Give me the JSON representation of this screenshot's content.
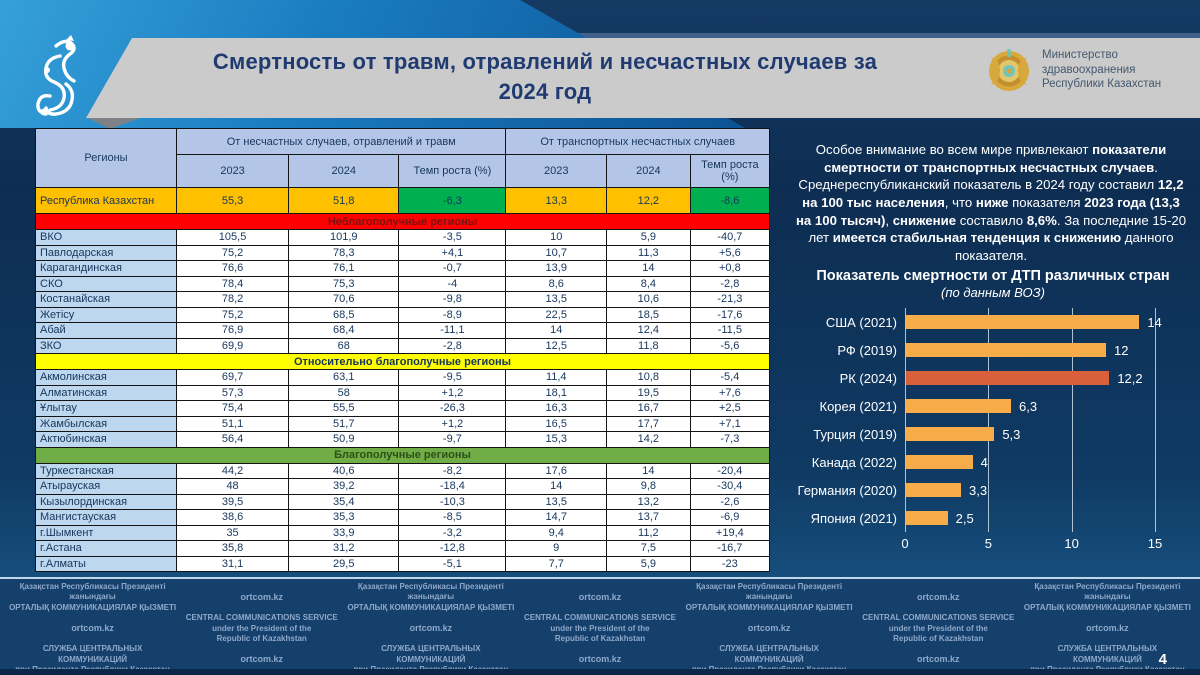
{
  "header": {
    "title_lines": [
      "Смертность от травм, отравлений и несчастных случаев за",
      "2024 год"
    ],
    "ministry": {
      "line1": "Министерство",
      "line2": "здравоохранения",
      "line3": "Республики Казахстан"
    }
  },
  "table": {
    "headers": {
      "regions": "Регионы",
      "group1": "От несчастных случаев, отравлений и травм",
      "group2": "От транспортных несчастных случаев",
      "y2023": "2023",
      "y2024": "2024",
      "rate": "Темп роста (%)"
    },
    "summary": {
      "label": "Республика Казахстан",
      "values": [
        "55,3",
        "51,8",
        "-6,3",
        "13,3",
        "12,2",
        "-8,6"
      ]
    },
    "sections": [
      {
        "banner": "Неблагополучные регионы",
        "type": "red",
        "rows": [
          {
            "region": "ВКО",
            "values": [
              "105,5",
              "101,9",
              "-3,5",
              "10",
              "5,9",
              "-40,7"
            ]
          },
          {
            "region": "Павлодарская",
            "values": [
              "75,2",
              "78,3",
              "+4,1",
              "10,7",
              "11,3",
              "+5,6"
            ]
          },
          {
            "region": "Карагандинская",
            "values": [
              "76,6",
              "76,1",
              "-0,7",
              "13,9",
              "14",
              "+0,8"
            ]
          },
          {
            "region": "СКО",
            "values": [
              "78,4",
              "75,3",
              "-4",
              "8,6",
              "8,4",
              "-2,8"
            ]
          },
          {
            "region": "Костанайская",
            "values": [
              "78,2",
              "70,6",
              "-9,8",
              "13,5",
              "10,6",
              "-21,3"
            ]
          },
          {
            "region": "Жетісу",
            "values": [
              "75,2",
              "68,5",
              "-8,9",
              "22,5",
              "18,5",
              "-17,6"
            ]
          },
          {
            "region": "Абай",
            "values": [
              "76,9",
              "68,4",
              "-11,1",
              "14",
              "12,4",
              "-11,5"
            ]
          },
          {
            "region": "ЗКО",
            "values": [
              "69,9",
              "68",
              "-2,8",
              "12,5",
              "11,8",
              "-5,6"
            ]
          }
        ]
      },
      {
        "banner": "Относительно благополучные регионы",
        "type": "yellow",
        "rows": [
          {
            "region": "Акмолинская",
            "values": [
              "69,7",
              "63,1",
              "-9,5",
              "11,4",
              "10,8",
              "-5,4"
            ]
          },
          {
            "region": "Алматинская",
            "values": [
              "57,3",
              "58",
              "+1,2",
              "18,1",
              "19,5",
              "+7,6"
            ]
          },
          {
            "region": "Ұлытау",
            "values": [
              "75,4",
              "55,5",
              "-26,3",
              "16,3",
              "16,7",
              "+2,5"
            ]
          },
          {
            "region": "Жамбылская",
            "values": [
              "51,1",
              "51,7",
              "+1,2",
              "16,5",
              "17,7",
              "+7,1"
            ]
          },
          {
            "region": "Актюбинская",
            "values": [
              "56,4",
              "50,9",
              "-9,7",
              "15,3",
              "14,2",
              "-7,3"
            ]
          }
        ]
      },
      {
        "banner": "Благополучные регионы",
        "type": "green",
        "rows": [
          {
            "region": "Туркестанская",
            "values": [
              "44,2",
              "40,6",
              "-8,2",
              "17,6",
              "14",
              "-20,4"
            ]
          },
          {
            "region": "Атырауская",
            "values": [
              "48",
              "39,2",
              "-18,4",
              "14",
              "9,8",
              "-30,4"
            ]
          },
          {
            "region": "Кызылординская",
            "values": [
              "39,5",
              "35,4",
              "-10,3",
              "13,5",
              "13,2",
              "-2,6"
            ]
          },
          {
            "region": "Мангистауская",
            "values": [
              "38,6",
              "35,3",
              "-8,5",
              "14,7",
              "13,7",
              "-6,9"
            ]
          },
          {
            "region": "г.Шымкент",
            "values": [
              "35",
              "33,9",
              "-3,2",
              "9,4",
              "11,2",
              "+19,4"
            ]
          },
          {
            "region": "г.Астана",
            "values": [
              "35,8",
              "31,2",
              "-12,8",
              "9",
              "7,5",
              "-16,7"
            ]
          },
          {
            "region": "г.Алматы",
            "values": [
              "31,1",
              "29,5",
              "-5,1",
              "7,7",
              "5,9",
              "-23"
            ]
          }
        ]
      }
    ]
  },
  "note": {
    "segments": [
      {
        "t": "Особое внимание во всем мире привлекают ",
        "b": false
      },
      {
        "t": "показатели смертности от транспортных несчастных случаев",
        "b": true
      },
      {
        "t": ". Среднереспубликанский показатель в 2024 году составил ",
        "b": false
      },
      {
        "t": "12,2 на 100 тыс населения",
        "b": true
      },
      {
        "t": ", что ",
        "b": false
      },
      {
        "t": "ниже",
        "b": true
      },
      {
        "t": " показателя ",
        "b": false
      },
      {
        "t": "2023 года (13,3 на 100 тысяч)",
        "b": true
      },
      {
        "t": ", ",
        "b": false
      },
      {
        "t": "снижение",
        "b": true
      },
      {
        "t": " составило ",
        "b": false
      },
      {
        "t": "8,6%",
        "b": true
      },
      {
        "t": ". За последние 15-20 лет ",
        "b": false
      },
      {
        "t": "имеется стабильная тенденция к снижению",
        "b": true
      },
      {
        "t": " данного показателя.",
        "b": false
      }
    ]
  },
  "chart_data": {
    "type": "bar",
    "orientation": "horizontal",
    "title": "Показатель смертности от ДТП различных стран",
    "subtitle": "(по данным ВОЗ)",
    "categories": [
      "США (2021)",
      "РФ (2019)",
      "РК (2024)",
      "Корея (2021)",
      "Турция (2019)",
      "Канада (2022)",
      "Германия (2020)",
      "Япония (2021)"
    ],
    "values": [
      14,
      12,
      12.2,
      6.3,
      5.3,
      4,
      3.3,
      2.5
    ],
    "value_labels": [
      "14",
      "12",
      "12,2",
      "6,3",
      "5,3",
      "4",
      "3,3",
      "2,5"
    ],
    "highlight_index": 2,
    "bar_color": "#F6AC48",
    "highlight_color": "#D9603A",
    "xlim": [
      0,
      15
    ],
    "x_ticks": [
      0,
      5,
      10,
      15
    ],
    "x_tick_labels": [
      "0",
      "5",
      "10",
      "15"
    ],
    "grid": true,
    "legend_position": "none"
  },
  "footer": {
    "kk": [
      "Қазақстан Республикасы Президенті жанындағы",
      "ОРТАЛЫҚ КОММУНИКАЦИЯЛАР ҚЫЗМЕТІ"
    ],
    "en": [
      "CENTRAL COMMUNICATIONS SERVICE",
      "under the President of the",
      "Republic of Kazakhstan"
    ],
    "ru": [
      "СЛУЖБА ЦЕНТРАЛЬНЫХ КОММУНИКАЦИЙ",
      "при Президенте Республики Казахстан"
    ],
    "ortcom": "ortcom.kz",
    "rows": [
      [
        "kk",
        "ort",
        "kk",
        "ort",
        "kk",
        "ort",
        "kk"
      ],
      [
        "ort",
        "en",
        "ort",
        "en",
        "ort",
        "en",
        "ort"
      ],
      [
        "ru",
        "ort",
        "ru",
        "ort",
        "ru",
        "ort",
        "ru"
      ]
    ],
    "page_number": "4"
  },
  "colors": {
    "summary_bg": "#FFC000",
    "summary_rate_bg": "#00B050",
    "section_red": "#FF0000",
    "section_yellow": "#FFFF00",
    "section_green": "#70AD47",
    "header_cell_bg": "#B4C6E7",
    "region_cell_bg": "#BDD7EE",
    "banner_gray": "#CBCBCB",
    "title_navy": "#203A72"
  }
}
